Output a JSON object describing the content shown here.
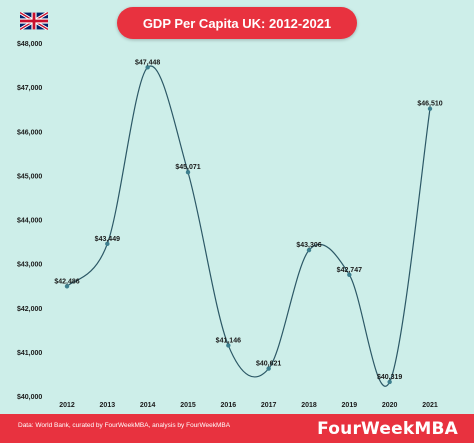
{
  "flag_icon": "uk-flag-icon",
  "colors": {
    "accent": "#e8323f",
    "background": "#cdeee9",
    "line": "#2c5866",
    "point": "#3d7f8e"
  },
  "chart_data": {
    "type": "line",
    "title": "GDP Per Capita UK: 2012-2021",
    "categories": [
      "2012",
      "2013",
      "2014",
      "2015",
      "2016",
      "2017",
      "2018",
      "2019",
      "2020",
      "2021"
    ],
    "values": [
      42486,
      43449,
      47448,
      45071,
      41146,
      40621,
      43306,
      42747,
      40319,
      46510
    ],
    "data_labels": [
      "$42,486",
      "$43,449",
      "$47,448",
      "$45,071",
      "$41,146",
      "$40,621",
      "$43,306",
      "$42,747",
      "$40,319",
      "$46,510"
    ],
    "y_tick_values": [
      40000,
      41000,
      42000,
      43000,
      44000,
      45000,
      46000,
      47000,
      48000
    ],
    "y_tick_labels": [
      "$40,000",
      "$41,000",
      "$42,000",
      "$43,000",
      "$44,000",
      "$45,000",
      "$46,000",
      "$47,000",
      "$48,000"
    ],
    "ylim": [
      40000,
      48000
    ],
    "grid": false,
    "legend": "none"
  },
  "footer": {
    "source": "Data: World Bank, curated by FourWeekMBA, analysis by FourWeekMBA",
    "brand": "FourWeekMBA"
  }
}
